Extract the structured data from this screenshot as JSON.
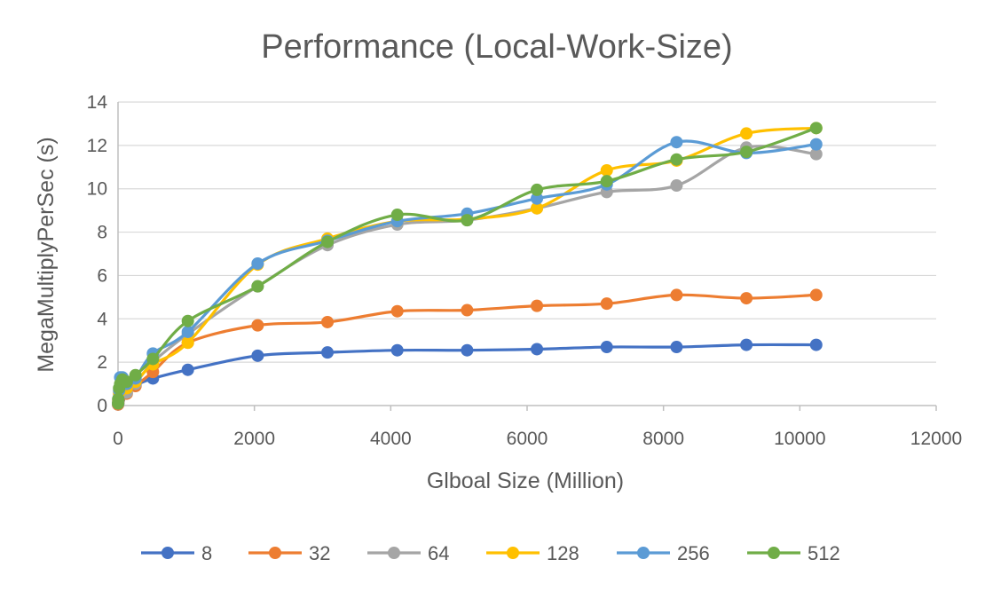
{
  "chart_data": {
    "type": "line",
    "title": "Performance (Local-Work-Size)",
    "xlabel": "Glboal Size (Million)",
    "ylabel": "MegaMultiplyPerSec (s)",
    "xlim": [
      0,
      12000
    ],
    "ylim": [
      0,
      14
    ],
    "x_ticks": [
      0,
      2000,
      4000,
      6000,
      8000,
      10000,
      12000
    ],
    "y_ticks": [
      0,
      2,
      4,
      6,
      8,
      10,
      12,
      14
    ],
    "x_tick_labels": [
      "0",
      "2000",
      "4000",
      "6000",
      "8000",
      "10000",
      "12000"
    ],
    "y_tick_labels": [
      "0",
      "2",
      "4",
      "6",
      "8",
      "10",
      "12",
      "14"
    ],
    "grid": "horizontal",
    "legend": "bottom",
    "smooth": true,
    "x": [
      1,
      4,
      16,
      32,
      64,
      128,
      256,
      512,
      1024,
      2048,
      3072,
      4096,
      5120,
      6144,
      7168,
      8192,
      9216,
      10240
    ],
    "series": [
      {
        "name": "8",
        "color": "#4472C4",
        "values": [
          0.05,
          0.1,
          0.3,
          0.5,
          0.7,
          0.85,
          0.95,
          1.25,
          1.65,
          2.3,
          2.45,
          2.55,
          2.55,
          2.6,
          2.7,
          2.7,
          2.8,
          2.8
        ]
      },
      {
        "name": "32",
        "color": "#ED7D31",
        "values": [
          0.05,
          0.15,
          0.35,
          0.5,
          0.6,
          0.55,
          0.9,
          1.55,
          2.9,
          3.7,
          3.85,
          4.35,
          4.4,
          4.6,
          4.7,
          5.1,
          4.95,
          5.1
        ]
      },
      {
        "name": "64",
        "color": "#A5A5A5",
        "values": [
          0.1,
          0.2,
          0.5,
          0.7,
          0.8,
          0.6,
          1.0,
          2.0,
          3.3,
          5.5,
          7.4,
          8.35,
          8.55,
          9.1,
          9.85,
          10.15,
          11.9,
          11.6
        ]
      },
      {
        "name": "128",
        "color": "#FFC000",
        "values": [
          0.1,
          0.25,
          0.6,
          0.8,
          0.9,
          0.8,
          1.1,
          1.9,
          2.9,
          6.5,
          7.7,
          8.5,
          8.6,
          9.1,
          10.85,
          11.3,
          12.55,
          12.8
        ]
      },
      {
        "name": "256",
        "color": "#5B9BD5",
        "values": [
          0.1,
          0.3,
          0.7,
          1.3,
          1.3,
          1.0,
          1.25,
          2.4,
          3.4,
          6.55,
          7.6,
          8.5,
          8.85,
          9.55,
          10.2,
          12.15,
          11.65,
          12.05
        ]
      },
      {
        "name": "512",
        "color": "#70AD47",
        "values": [
          0.1,
          0.3,
          0.8,
          1.0,
          1.2,
          1.1,
          1.4,
          2.15,
          3.9,
          5.5,
          7.55,
          8.8,
          8.55,
          9.95,
          10.35,
          11.35,
          11.7,
          12.8
        ]
      }
    ]
  }
}
